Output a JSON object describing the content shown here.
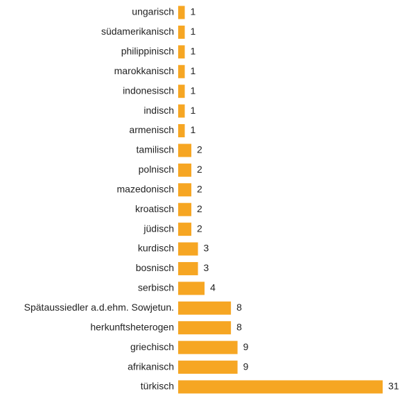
{
  "chart_data": {
    "type": "barh",
    "color": "#f6a623",
    "categories": [
      "ungarisch",
      "südamerikanisch",
      "philippinisch",
      "marokkanisch",
      "indonesisch",
      "indisch",
      "armenisch",
      "tamilisch",
      "polnisch",
      "mazedonisch",
      "kroatisch",
      "jüdisch",
      "kurdisch",
      "bosnisch",
      "serbisch",
      "Spätaussiedler a.d.ehm. Sowjetun.",
      "herkunftsheterogen",
      "griechisch",
      "afrikanisch",
      "türkisch"
    ],
    "values": [
      1,
      1,
      1,
      1,
      1,
      1,
      1,
      2,
      2,
      2,
      2,
      2,
      3,
      3,
      4,
      8,
      8,
      9,
      9,
      31
    ]
  }
}
